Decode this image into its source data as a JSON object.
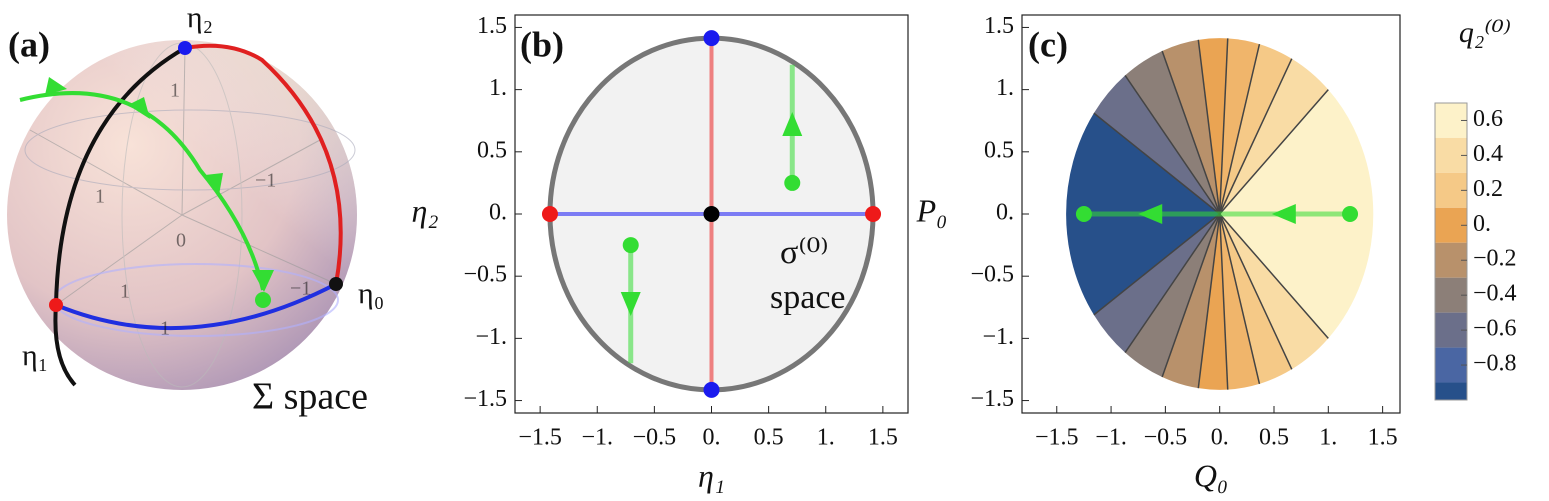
{
  "panel_a": {
    "label": "(a)",
    "axis_names": [
      "η₂",
      "η₁",
      "η₀"
    ],
    "caption": "Σ space",
    "tick_labels": [
      "1",
      "1",
      "1",
      "0",
      "−1",
      "−1",
      "1"
    ]
  },
  "panel_b": {
    "label": "(b)",
    "xlabel": "η₁",
    "ylabel": "η₂",
    "annotation": [
      "σ⁽⁰⁾",
      "space"
    ],
    "xlim": [
      -1.72,
      1.72
    ],
    "ylim": [
      -1.6,
      1.6
    ],
    "xticks": [
      {
        "value": -1.5,
        "label": "−1.5"
      },
      {
        "value": -1,
        "label": "−1."
      },
      {
        "value": -0.5,
        "label": "−0.5"
      },
      {
        "value": 0,
        "label": "0."
      },
      0.5,
      {
        "value": 1,
        "label": "1."
      },
      1.5
    ],
    "yticks": [
      {
        "value": -1.5,
        "label": "−1.5"
      },
      {
        "value": -1,
        "label": "−1."
      },
      {
        "value": -0.5,
        "label": "−0.5"
      },
      {
        "value": 0,
        "label": "0."
      },
      0.5,
      {
        "value": 1,
        "label": "1."
      },
      1.5
    ],
    "radius": 1.414,
    "lines": [
      {
        "x": [
          0,
          0
        ],
        "y": [
          -1.414,
          1.414
        ],
        "color": "#ee8080"
      },
      {
        "x": [
          -1.414,
          1.414
        ],
        "y": [
          0,
          0
        ],
        "color": "#7c7cf4"
      }
    ],
    "trajectories": [
      {
        "x": [
          0.707,
          0.707
        ],
        "y": [
          0.25,
          1.2
        ]
      },
      {
        "x": [
          -0.707,
          -0.707
        ],
        "y": [
          -0.25,
          -1.2
        ]
      }
    ],
    "points": [
      {
        "x": 0,
        "y": 1.414,
        "color": "#1a1aee"
      },
      {
        "x": 0,
        "y": -1.414,
        "color": "#1a1aee"
      },
      {
        "x": -1.414,
        "y": 0,
        "color": "#ee1a1a"
      },
      {
        "x": 1.414,
        "y": 0,
        "color": "#ee1a1a"
      },
      {
        "x": 0,
        "y": 0,
        "color": "#000000"
      },
      {
        "x": 0.707,
        "y": 0.25,
        "color": "#33dd33"
      },
      {
        "x": -0.707,
        "y": -0.25,
        "color": "#33dd33"
      }
    ]
  },
  "panel_c": {
    "label": "(c)",
    "xlabel": "Q₀",
    "ylabel": "P₀",
    "xlim": [
      -1.82,
      1.66
    ],
    "ylim": [
      -1.6,
      1.6
    ],
    "xticks": [
      {
        "value": -1.5,
        "label": "−1.5"
      },
      {
        "value": -1,
        "label": "−1."
      },
      {
        "value": -0.5,
        "label": "−0.5"
      },
      {
        "value": 0,
        "label": "0."
      },
      0.5,
      {
        "value": 1,
        "label": "1."
      },
      1.5
    ],
    "yticks": [
      {
        "value": -1.5,
        "label": "−1.5"
      },
      {
        "value": -1,
        "label": "−1."
      },
      {
        "value": -0.5,
        "label": "−0.5"
      },
      {
        "value": 0,
        "label": "0."
      },
      0.5,
      {
        "value": 1,
        "label": "1."
      },
      1.5
    ],
    "radius": 1.414,
    "sectors": [
      {
        "from": 0,
        "to": 45,
        "color": "#fdf2c9"
      },
      {
        "from": 45,
        "to": 62,
        "color": "#f9dca5"
      },
      {
        "from": 62,
        "to": 75,
        "color": "#f5c987"
      },
      {
        "from": 75,
        "to": 87,
        "color": "#f0b56b"
      },
      {
        "from": 87,
        "to": 98,
        "color": "#eaa453"
      },
      {
        "from": 98,
        "to": 112,
        "color": "#b8916b"
      },
      {
        "from": 112,
        "to": 128,
        "color": "#8c7f78"
      },
      {
        "from": 128,
        "to": 145,
        "color": "#6b6f8a"
      },
      {
        "from": 145,
        "to": 180,
        "color": "#27508a"
      }
    ],
    "trajectories": [
      {
        "x": [
          1.2,
          0
        ],
        "y": [
          0,
          0
        ]
      },
      {
        "x": [
          0,
          -1.25
        ],
        "y": [
          0,
          0
        ]
      }
    ],
    "points": [
      {
        "x": 1.2,
        "y": 0,
        "color": "#33dd33"
      },
      {
        "x": -1.25,
        "y": 0,
        "color": "#33dd33"
      }
    ],
    "colorbar": {
      "title": "q₂⁽⁰⁾",
      "clim": [
        -1,
        0.7
      ],
      "bands": [
        {
          "from": 0.5,
          "to": 0.7,
          "color": "#fdf2c9"
        },
        {
          "from": 0.3,
          "to": 0.5,
          "color": "#f9dca5"
        },
        {
          "from": 0.1,
          "to": 0.3,
          "color": "#f5c987"
        },
        {
          "from": -0.1,
          "to": 0.1,
          "color": "#eaa453"
        },
        {
          "from": -0.3,
          "to": -0.1,
          "color": "#b8916b"
        },
        {
          "from": -0.5,
          "to": -0.3,
          "color": "#8c7f78"
        },
        {
          "from": -0.7,
          "to": -0.5,
          "color": "#6b6f8a"
        },
        {
          "from": -0.9,
          "to": -0.7,
          "color": "#4a66a3"
        },
        {
          "from": -1,
          "to": -0.9,
          "color": "#27508a"
        }
      ],
      "ticks": [
        0.6,
        0.4,
        0.2,
        {
          "value": 0,
          "label": "0."
        },
        {
          "value": -0.2,
          "label": "−0.2"
        },
        {
          "value": -0.4,
          "label": "−0.4"
        },
        {
          "value": -0.6,
          "label": "−0.6"
        },
        {
          "value": -0.8,
          "label": "−0.8"
        }
      ]
    }
  }
}
